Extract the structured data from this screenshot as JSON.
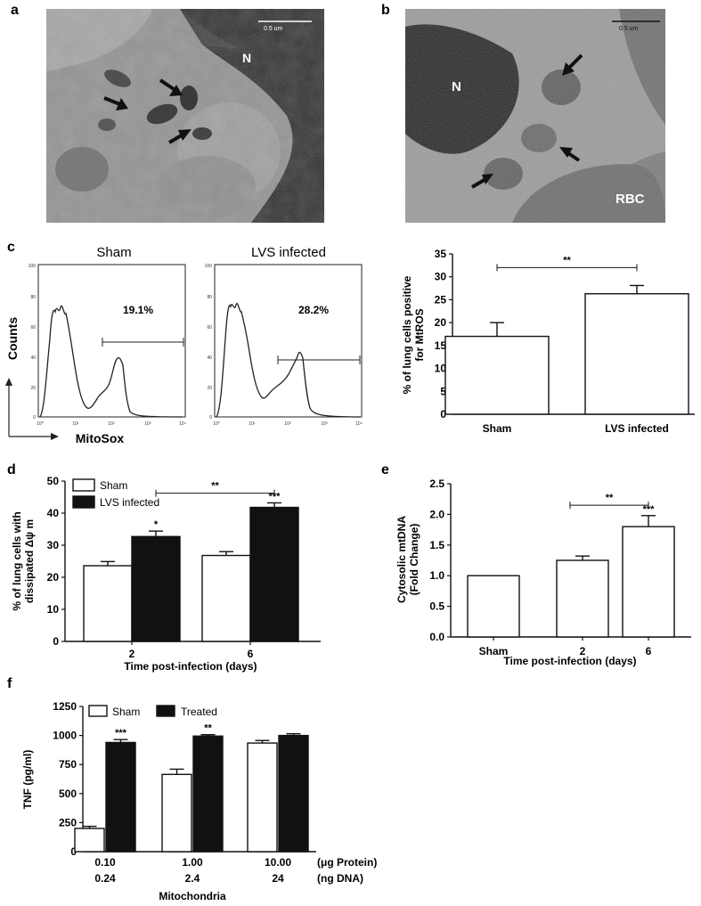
{
  "panels": {
    "a": {
      "letter": "a",
      "scale_bar": "0.5 um",
      "labels": [
        "N"
      ]
    },
    "b": {
      "letter": "b",
      "scale_bar": "0.5 um",
      "labels": [
        "N",
        "RBC"
      ]
    },
    "c": {
      "letter": "c",
      "flow_axis_x": "MitoSox",
      "flow_axis_y": "Counts",
      "flow_plots": [
        {
          "title": "Sham",
          "percent": "19.1%"
        },
        {
          "title": "LVS infected",
          "percent": "28.2%"
        }
      ],
      "hist_yticks": [
        "100",
        "80",
        "60",
        "40",
        "20",
        "0"
      ],
      "hist_xticks": [
        "10⁰",
        "10¹",
        "10²",
        "10³",
        "10⁴"
      ]
    },
    "d": {
      "letter": "d"
    },
    "e": {
      "letter": "e"
    },
    "f": {
      "letter": "f",
      "xlabel_row1_unit": "(μg Protein)",
      "xlabel_row2_unit": "(ng DNA)",
      "xlabel_row1": [
        "0.10",
        "1.00",
        "10.00"
      ],
      "xlabel_row2": [
        "0.24",
        "2.4",
        "24"
      ],
      "xlabel_title": "Mitochondria"
    }
  },
  "chart_data": [
    {
      "id": "c-bar",
      "type": "bar",
      "categories": [
        "Sham",
        "LVS infected"
      ],
      "values": [
        17.0,
        26.3
      ],
      "errors": [
        3.0,
        1.8
      ],
      "ylabel": "%  of lung cells positive\nfor MtROS",
      "ylim": [
        0,
        35
      ],
      "yticks": [
        0,
        5,
        10,
        15,
        20,
        25,
        30,
        35
      ],
      "significance": [
        {
          "from": 0,
          "to": 1,
          "label": "**"
        }
      ],
      "colors": [
        "#ffffff",
        "#ffffff"
      ]
    },
    {
      "id": "d-bar",
      "type": "bar",
      "categories": [
        "2",
        "6"
      ],
      "series": [
        {
          "name": "Sham",
          "values": [
            23.6,
            26.8
          ],
          "errors": [
            1.3,
            1.2
          ],
          "color": "#ffffff"
        },
        {
          "name": "LVS infected",
          "values": [
            32.7,
            41.8
          ],
          "errors": [
            1.7,
            1.4
          ],
          "color": "#111111"
        }
      ],
      "ylabel": "% of lung cells with\ndissipated Δψ m",
      "xlabel": "Time post-infection (days)",
      "ylim": [
        0,
        50
      ],
      "yticks": [
        0,
        10,
        20,
        30,
        40,
        50
      ],
      "bar_stars": [
        [
          "",
          "*"
        ],
        [
          "",
          "***"
        ]
      ],
      "significance": [
        {
          "label": "**"
        }
      ],
      "legend": "top-left"
    },
    {
      "id": "e-bar",
      "type": "bar",
      "categories": [
        "Sham",
        "2",
        "6"
      ],
      "values": [
        1.0,
        1.25,
        1.8
      ],
      "errors": [
        0,
        0.07,
        0.18
      ],
      "ylabel": "Cytosolic mtDNA\n(Fold Change)",
      "xlabel": "Time post-infection (days)",
      "ylim": [
        0,
        2.5
      ],
      "yticks": [
        "0.0",
        "0.5",
        "1.0",
        "1.5",
        "2.0",
        "2.5"
      ],
      "bar_stars": [
        "",
        "",
        "***"
      ],
      "significance": [
        {
          "from": 1,
          "to": 2,
          "label": "**"
        }
      ]
    },
    {
      "id": "f-bar",
      "type": "bar",
      "categories": [
        "0.10",
        "1.00",
        "10.00"
      ],
      "series": [
        {
          "name": "Sham",
          "values": [
            200,
            665,
            935
          ],
          "errors": [
            18,
            45,
            22
          ],
          "color": "#ffffff"
        },
        {
          "name": "Treated",
          "values": [
            940,
            995,
            1000
          ],
          "errors": [
            25,
            12,
            15
          ],
          "color": "#111111"
        }
      ],
      "ylabel": "TNF (pg/ml)",
      "ylim": [
        0,
        1250
      ],
      "yticks": [
        0,
        250,
        500,
        750,
        1000,
        1250
      ],
      "bar_stars": [
        [
          "",
          "***"
        ],
        [
          "",
          "**"
        ],
        [
          "",
          ""
        ]
      ],
      "legend": "top"
    }
  ]
}
